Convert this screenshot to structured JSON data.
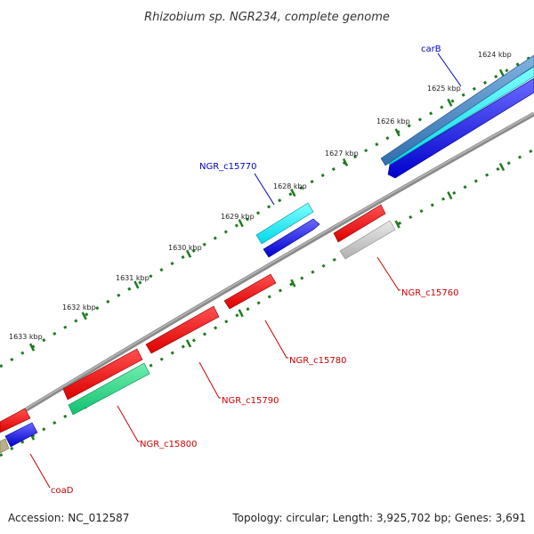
{
  "title": "Rhizobium sp. NGR234, complete genome",
  "footer": {
    "accession": "Accession: NC_012587",
    "topology": "Topology: circular; Length: 3,925,702 bp; Genes: 3,691"
  },
  "colors": {
    "background": "#ffffff",
    "backbone": "#888888",
    "ticks": "#1e7a1e",
    "forward_label": "#0000cc",
    "reverse_label": "#cc0000"
  },
  "ticks": [
    {
      "label": "1624 kbp"
    },
    {
      "label": "1625 kbp"
    },
    {
      "label": "1626 kbp"
    },
    {
      "label": "1627 kbp"
    },
    {
      "label": "1628 kbp"
    },
    {
      "label": "1629 kbp"
    },
    {
      "label": "1630 kbp"
    },
    {
      "label": "1631 kbp"
    },
    {
      "label": "1632 kbp"
    },
    {
      "label": "1633 kbp"
    }
  ],
  "genes": [
    {
      "name": "carB",
      "strand": "forward",
      "color": "#3a7fc0",
      "labeled": true
    },
    {
      "name": "NGR_c15770",
      "strand": "forward",
      "color": "#00e5ee",
      "labeled": true
    },
    {
      "name": "NGR_c15760",
      "strand": "reverse",
      "color": "#ee0000",
      "labeled": true
    },
    {
      "name": "NGR_c15780",
      "strand": "reverse",
      "color": "#ee0000",
      "labeled": true
    },
    {
      "name": "NGR_c15790",
      "strand": "reverse",
      "color": "#ee0000",
      "labeled": true
    },
    {
      "name": "NGR_c15800",
      "strand": "reverse",
      "color": "#ee0000",
      "labeled": true
    },
    {
      "name": "coaD",
      "strand": "reverse",
      "color": "#ee0000",
      "labeled": true
    }
  ]
}
